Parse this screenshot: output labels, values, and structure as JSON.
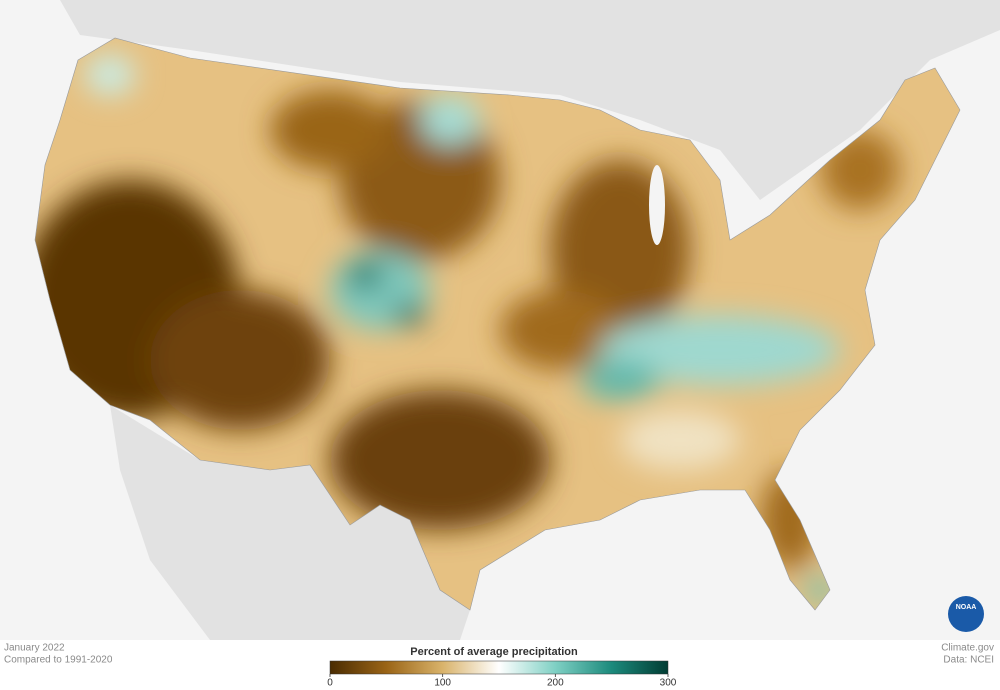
{
  "map": {
    "caption": {
      "date": "January 2022",
      "baseline": "Compared to 1991-2020"
    },
    "credits": {
      "site": "Climate.gov",
      "source": "Data: NCEI"
    },
    "logo": "NOAA",
    "legend": {
      "title": "Percent of average precipitation",
      "range": [
        0,
        300
      ],
      "ticks": [
        0,
        100,
        200,
        300
      ],
      "colors": [
        "#4a2c02",
        "#9a6416",
        "#d9b36b",
        "#ffffff",
        "#7fd0c4",
        "#1c8a7c",
        "#013c33"
      ]
    }
  }
}
